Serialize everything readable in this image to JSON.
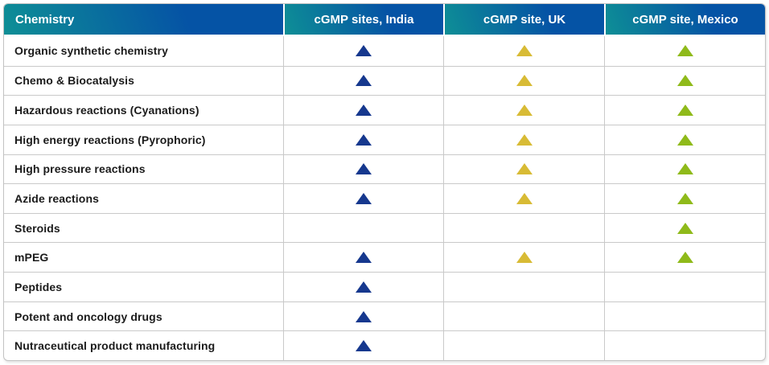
{
  "table": {
    "columns": [
      {
        "key": "chemistry",
        "label": "Chemistry"
      },
      {
        "key": "india",
        "label": "cGMP sites, India",
        "marker_color": "#16388e",
        "marker_icon": "triangle-up-icon-navy"
      },
      {
        "key": "uk",
        "label": "cGMP site, UK",
        "marker_color": "#d8bb35",
        "marker_icon": "triangle-up-icon-gold"
      },
      {
        "key": "mexico",
        "label": "cGMP site, Mexico",
        "marker_color": "#8fba1a",
        "marker_icon": "triangle-up-icon-green"
      }
    ],
    "rows": [
      {
        "label": "Organic synthetic chemistry",
        "sites": [
          true,
          true,
          true
        ]
      },
      {
        "label": "Chemo & Biocatalysis",
        "sites": [
          true,
          true,
          true
        ]
      },
      {
        "label": "Hazardous reactions (Cyanations)",
        "sites": [
          true,
          true,
          true
        ]
      },
      {
        "label": "High energy reactions (Pyrophoric)",
        "sites": [
          true,
          true,
          true
        ]
      },
      {
        "label": "High pressure reactions",
        "sites": [
          true,
          true,
          true
        ]
      },
      {
        "label": "Azide reactions",
        "sites": [
          true,
          true,
          true
        ]
      },
      {
        "label": "Steroids",
        "sites": [
          false,
          false,
          true
        ]
      },
      {
        "label": "mPEG",
        "sites": [
          true,
          true,
          true
        ]
      },
      {
        "label": "Peptides",
        "sites": [
          true,
          false,
          false
        ]
      },
      {
        "label": "Potent and oncology drugs",
        "sites": [
          true,
          false,
          false
        ]
      },
      {
        "label": "Nutraceutical product manufacturing",
        "sites": [
          true,
          false,
          false
        ]
      }
    ]
  },
  "colors": {
    "header_gradient_teal": "#0e8f96",
    "header_gradient_blue": "#0553a5",
    "header_text": "#ffffff",
    "row_text": "#1b1b1b",
    "grid_border": "#c9c9c9",
    "india_marker": "#16388e",
    "uk_marker": "#d8bb35",
    "mexico_marker": "#8fba1a"
  },
  "chart_data": {
    "type": "table",
    "title": "",
    "columns": [
      "Chemistry",
      "cGMP sites, India",
      "cGMP site, UK",
      "cGMP site, Mexico"
    ],
    "marker_meaning": "filled upward triangle = capability available at site",
    "rows": [
      {
        "chemistry": "Organic synthetic chemistry",
        "india": true,
        "uk": true,
        "mexico": true
      },
      {
        "chemistry": "Chemo & Biocatalysis",
        "india": true,
        "uk": true,
        "mexico": true
      },
      {
        "chemistry": "Hazardous reactions (Cyanations)",
        "india": true,
        "uk": true,
        "mexico": true
      },
      {
        "chemistry": "High energy reactions (Pyrophoric)",
        "india": true,
        "uk": true,
        "mexico": true
      },
      {
        "chemistry": "High pressure reactions",
        "india": true,
        "uk": true,
        "mexico": true
      },
      {
        "chemistry": "Azide reactions",
        "india": true,
        "uk": true,
        "mexico": true
      },
      {
        "chemistry": "Steroids",
        "india": false,
        "uk": false,
        "mexico": true
      },
      {
        "chemistry": "mPEG",
        "india": true,
        "uk": true,
        "mexico": true
      },
      {
        "chemistry": "Peptides",
        "india": true,
        "uk": false,
        "mexico": false
      },
      {
        "chemistry": "Potent and oncology drugs",
        "india": true,
        "uk": false,
        "mexico": false
      },
      {
        "chemistry": "Nutraceutical product manufacturing",
        "india": true,
        "uk": false,
        "mexico": false
      }
    ],
    "marker_colors": {
      "india": "#16388e",
      "uk": "#d8bb35",
      "mexico": "#8fba1a"
    }
  }
}
